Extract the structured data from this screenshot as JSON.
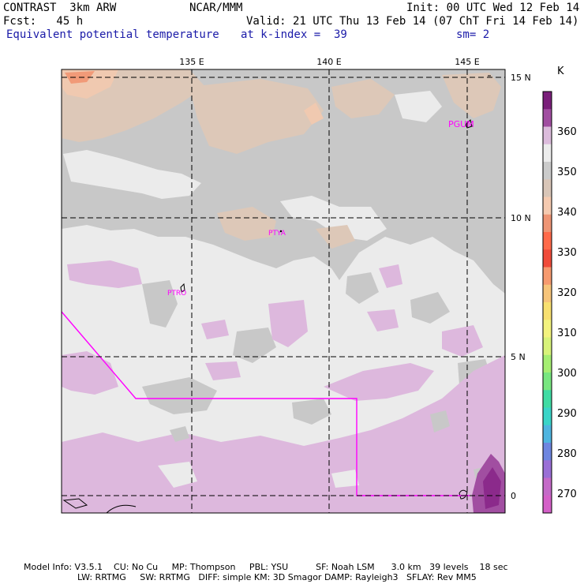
{
  "header": {
    "left1": "CONTRAST  3km ARW",
    "center1": "NCAR/MMM",
    "right1": "Init: 00 UTC Wed 12 Feb 14",
    "left2": "Fcst:   45 h",
    "right2": "Valid: 21 UTC Thu 13 Feb 14 (07 ChT Fri 14 Feb 14)",
    "field": "Equivalent potential temperature",
    "level": "at k-index =  39",
    "smooth": "sm= 2"
  },
  "map": {
    "lon_labels": [
      "135 E",
      "140 E",
      "145 E"
    ],
    "lat_labels": [
      "15 N",
      "10 N",
      "5 N",
      "0"
    ],
    "stations": [
      "PGUM",
      "PTYA",
      "PTRO"
    ],
    "fill_colors": {
      "gray": "#c8c8c8",
      "light_gray": "#ebebeb",
      "tan": "#ddc8b8",
      "peach": "#f0c9b0",
      "orange": "#f19a78",
      "lavender": "#ddb8dd",
      "purple": "#8b2a8b",
      "boundary": "#ff00ff"
    }
  },
  "colorbar": {
    "unit": "K",
    "labels": [
      "360",
      "350",
      "340",
      "330",
      "320",
      "310",
      "300",
      "290",
      "280",
      "270"
    ],
    "colors": [
      "#7a1f7a",
      "#a14ea1",
      "#dcbcdc",
      "#ececec",
      "#cbcbcb",
      "#d9c6b8",
      "#f5cab0",
      "#ee9575",
      "#ff6a4a",
      "#f04b3a",
      "#f69a6f",
      "#f6c47a",
      "#f8e070",
      "#f3f37e",
      "#d8f37a",
      "#a5ee72",
      "#78e680",
      "#40dca4",
      "#3ad5c8",
      "#4fb5e0",
      "#6e86e0",
      "#9a6fd6",
      "#c46ac8",
      "#d460c8"
    ]
  },
  "footer": {
    "line1": "Model Info: V3.5.1    CU: No Cu     MP: Thompson     PBL: YSU          SF: Noah LSM      3.0 km   39 levels    18 sec",
    "line2": "LW: RRTMG     SW: RRTMG   DIFF: simple KM: 3D Smagor DAMP: Rayleigh3   SFLAY: Rev MM5"
  }
}
